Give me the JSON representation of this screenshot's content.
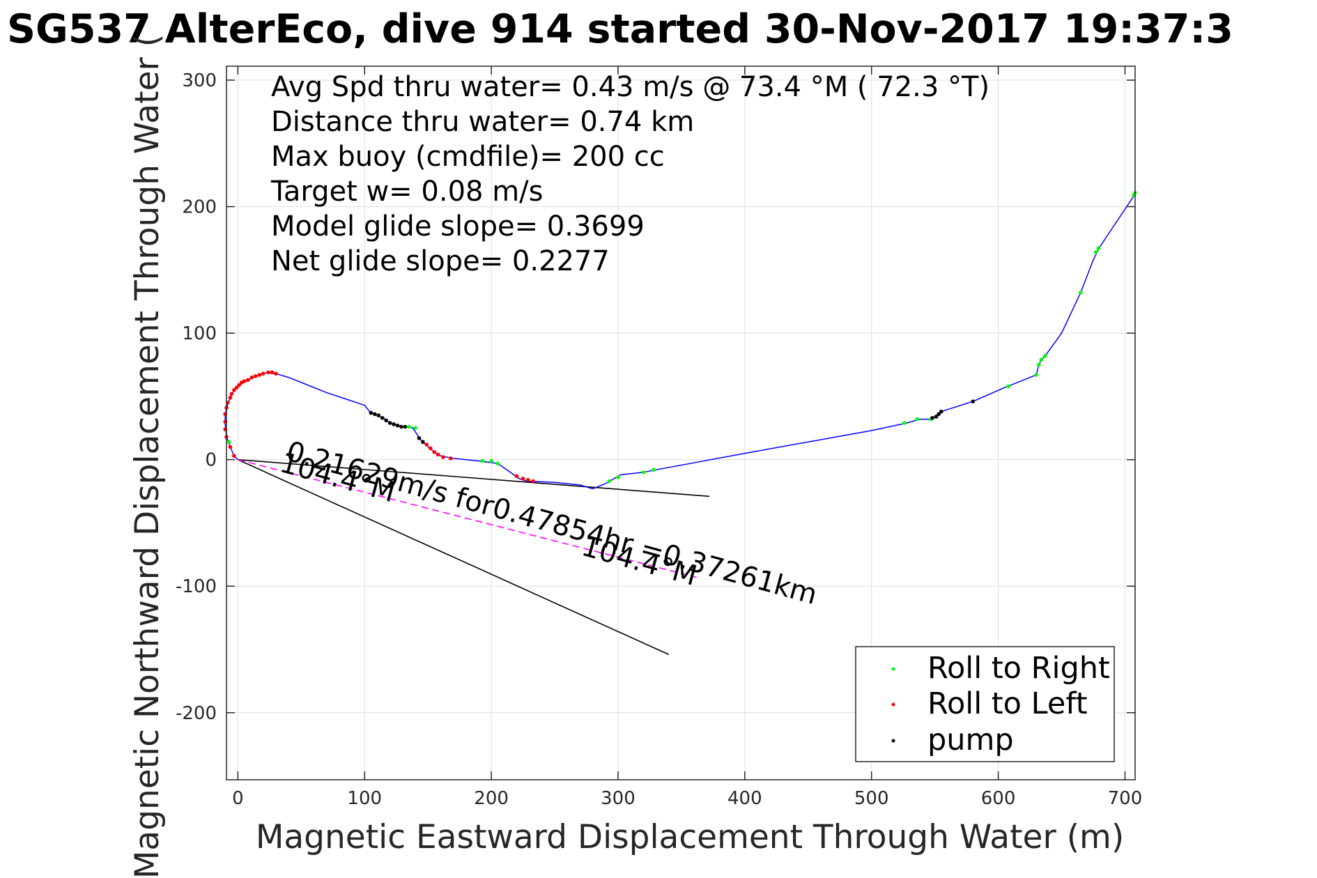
{
  "chart_data": {
    "type": "line",
    "title": "SG537 AlterEco, dive 914 started 30-Nov-2017 19:37:3",
    "xlabel": "Magnetic Eastward Displacement Through Water (m)",
    "ylabel": "Magnetic Northward Displacement Through Water (",
    "xlim": [
      -9,
      708
    ],
    "ylim": [
      -253,
      311
    ],
    "xticks": [
      0,
      100,
      200,
      300,
      400,
      500,
      600,
      700
    ],
    "yticks": [
      -200,
      -100,
      0,
      100,
      200,
      300
    ],
    "grid": true,
    "annotations": [
      "Avg Spd thru water=  0.43 m/s @  73.4 °M ( 72.3 °T)",
      "Distance thru water=  0.74 km",
      "Max buoy (cmdfile)= 200 cc",
      "Target w= 0.08 m/s",
      "Model glide slope= 0.3699",
      "Net glide slope= 0.2277"
    ],
    "track": {
      "name": "track",
      "color": "#0000ff",
      "points": [
        [
          0,
          0
        ],
        [
          -3,
          3
        ],
        [
          -6,
          10
        ],
        [
          -9,
          18
        ],
        [
          -10,
          28
        ],
        [
          -10,
          36
        ],
        [
          -8,
          44
        ],
        [
          -5,
          51
        ],
        [
          -2,
          56
        ],
        [
          3,
          60
        ],
        [
          8,
          63
        ],
        [
          14,
          66
        ],
        [
          19,
          68
        ],
        [
          24,
          69
        ],
        [
          30,
          68
        ],
        [
          40,
          65
        ],
        [
          55,
          59
        ],
        [
          70,
          53
        ],
        [
          85,
          48
        ],
        [
          100,
          43
        ],
        [
          104,
          38
        ],
        [
          110,
          35
        ],
        [
          115,
          33
        ],
        [
          120,
          29
        ],
        [
          125,
          27
        ],
        [
          130,
          26
        ],
        [
          135,
          26
        ],
        [
          138,
          25
        ],
        [
          140,
          22
        ],
        [
          144,
          16
        ],
        [
          149,
          11
        ],
        [
          155,
          6
        ],
        [
          160,
          3
        ],
        [
          170,
          1
        ],
        [
          190,
          -1
        ],
        [
          205,
          -3
        ],
        [
          215,
          -10
        ],
        [
          222,
          -15
        ],
        [
          228,
          -17
        ],
        [
          250,
          -18
        ],
        [
          270,
          -20
        ],
        [
          280,
          -23
        ],
        [
          290,
          -19
        ],
        [
          302,
          -12
        ],
        [
          320,
          -10
        ],
        [
          330,
          -8
        ],
        [
          400,
          5
        ],
        [
          450,
          14
        ],
        [
          500,
          23
        ],
        [
          528,
          29
        ],
        [
          538,
          32
        ],
        [
          548,
          32
        ],
        [
          552,
          35
        ],
        [
          555,
          38
        ],
        [
          580,
          46
        ],
        [
          605,
          57
        ],
        [
          620,
          63
        ],
        [
          630,
          67
        ],
        [
          632,
          75
        ],
        [
          634,
          79
        ],
        [
          637,
          82
        ],
        [
          650,
          100
        ],
        [
          665,
          132
        ],
        [
          675,
          158
        ],
        [
          680,
          168
        ],
        [
          708,
          210
        ]
      ]
    },
    "series": [
      {
        "name": "Roll to Right",
        "color": "#00ff00",
        "points": [
          [
            -7,
            14
          ],
          [
            135,
            26
          ],
          [
            140,
            25
          ],
          [
            193,
            -1
          ],
          [
            200,
            -1
          ],
          [
            205,
            -3
          ],
          [
            293,
            -17
          ],
          [
            300,
            -14
          ],
          [
            320,
            -10
          ],
          [
            328,
            -8
          ],
          [
            526,
            29
          ],
          [
            536,
            32
          ],
          [
            547,
            32
          ],
          [
            608,
            58
          ],
          [
            630,
            67
          ],
          [
            632,
            75
          ],
          [
            634,
            79
          ],
          [
            637,
            82
          ],
          [
            665,
            132
          ],
          [
            677,
            164
          ],
          [
            679,
            167
          ],
          [
            707,
            209
          ],
          [
            708,
            211
          ]
        ]
      },
      {
        "name": "Roll to Left",
        "color": "#ff0000",
        "points": [
          [
            -3,
            3
          ],
          [
            -6,
            10
          ],
          [
            -9,
            18
          ],
          [
            -10,
            24
          ],
          [
            -10,
            30
          ],
          [
            -10,
            36
          ],
          [
            -9,
            41
          ],
          [
            -8,
            45
          ],
          [
            -6,
            49
          ],
          [
            -5,
            52
          ],
          [
            -3,
            55
          ],
          [
            -1,
            57
          ],
          [
            1,
            59
          ],
          [
            3,
            61
          ],
          [
            5,
            62
          ],
          [
            8,
            63
          ],
          [
            11,
            65
          ],
          [
            14,
            66
          ],
          [
            17,
            67
          ],
          [
            20,
            68
          ],
          [
            24,
            69
          ],
          [
            27,
            69
          ],
          [
            30,
            68
          ],
          [
            149,
            12
          ],
          [
            152,
            9
          ],
          [
            155,
            6
          ],
          [
            158,
            4
          ],
          [
            162,
            2
          ],
          [
            168,
            1
          ],
          [
            220,
            -13
          ],
          [
            225,
            -15
          ],
          [
            229,
            -16
          ],
          [
            233,
            -17
          ]
        ]
      },
      {
        "name": "pump",
        "color": "#000000",
        "points": [
          [
            105,
            37
          ],
          [
            108,
            36
          ],
          [
            111,
            35
          ],
          [
            114,
            33
          ],
          [
            117,
            31
          ],
          [
            120,
            29
          ],
          [
            123,
            28
          ],
          [
            126,
            27
          ],
          [
            129,
            26
          ],
          [
            132,
            26
          ],
          [
            143,
            17
          ],
          [
            146,
            14
          ],
          [
            548,
            33
          ],
          [
            551,
            34
          ],
          [
            553,
            36
          ],
          [
            555,
            38
          ],
          [
            580,
            46
          ]
        ]
      }
    ],
    "reference_lines": [
      {
        "from": [
          0,
          0
        ],
        "to": [
          372,
          -29
        ],
        "color": "#000000"
      },
      {
        "from": [
          0,
          0
        ],
        "to": [
          340,
          -154
        ],
        "color": "#000000"
      },
      {
        "from": [
          0,
          0
        ],
        "to": [
          362,
          -93
        ],
        "color": "#ff00ff",
        "style": "dashed"
      }
    ],
    "line_labels": [
      {
        "text": "0.21629m/s for0.47854hr =0.37261km",
        "anchor": [
          37,
          0
        ],
        "angle_deg": 15.3
      },
      {
        "text": "104.4°M",
        "anchor": [
          32,
          -9
        ],
        "angle_deg": 15.3
      },
      {
        "text": "104.4°M",
        "anchor": [
          270,
          -75
        ],
        "angle_deg": 15.3
      }
    ],
    "legend": {
      "position": "bottom-right",
      "entries": [
        "Roll to Right",
        "Roll to Left",
        "pump"
      ]
    }
  }
}
